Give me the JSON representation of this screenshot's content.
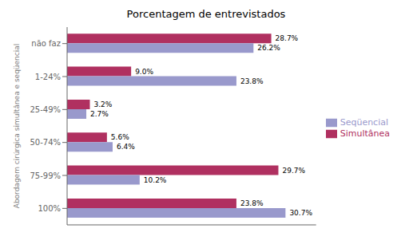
{
  "chart_data": {
    "type": "bar",
    "orientation": "horizontal",
    "title": "Porcentagem de entrevistados",
    "ylabel": "Abordagem cirúrgica simultânea e seqüencial",
    "categories": [
      "100%",
      "75-99%",
      "50-74%",
      "25-49%",
      "1-24%",
      "não faz"
    ],
    "series": [
      {
        "name": "Simultânea",
        "color": "#b03060",
        "values": [
          23.8,
          29.7,
          5.6,
          3.2,
          9.0,
          28.7
        ],
        "value_labels": [
          "23.8%",
          "29.7%",
          "5.6%",
          "3.2%",
          "9.0%",
          "28.7%"
        ]
      },
      {
        "name": "Seqüencial",
        "color": "#9999cc",
        "values": [
          30.7,
          10.2,
          6.4,
          2.7,
          23.8,
          26.2
        ],
        "value_labels": [
          "30.7%",
          "10.2%",
          "6.4%",
          "2.7%",
          "23.8%",
          "26.2%"
        ]
      }
    ],
    "xlim": [
      0,
      35
    ],
    "xticks": [
      0,
      5,
      10,
      15,
      20,
      25,
      30,
      35
    ],
    "data_labels": true,
    "tick_labels": "y",
    "legend": "right",
    "grid": false
  }
}
